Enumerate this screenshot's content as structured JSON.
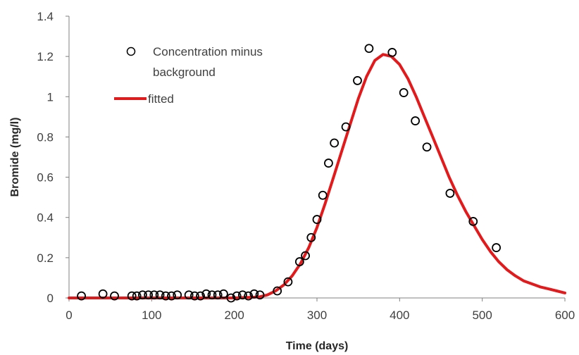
{
  "chart_data": {
    "type": "scatter",
    "xlabel": "Time (days)",
    "ylabel": "Bromide (mg/l)",
    "xlim": [
      0,
      600
    ],
    "ylim": [
      0,
      1.4
    ],
    "x_ticks": [
      "0",
      "100",
      "200",
      "300",
      "400",
      "500",
      "600"
    ],
    "y_ticks": [
      "0",
      "0.2",
      "0.4",
      "0.6",
      "0.8",
      "1",
      "1.2",
      "1.4"
    ],
    "grid": false,
    "legend_position": "top-left",
    "colors": {
      "observed": "#000000",
      "fitted": "#e31a1c",
      "axis": "#808080"
    },
    "series": [
      {
        "name_lines": [
          "Concentration minus",
          "background"
        ],
        "kind": "marker",
        "x": [
          15,
          41,
          55,
          76,
          82,
          89,
          96,
          103,
          110,
          117,
          124,
          131,
          145,
          152,
          159,
          166,
          173,
          180,
          187,
          196,
          203,
          210,
          217,
          224,
          231,
          252,
          265,
          279,
          286,
          293,
          300,
          307,
          314,
          321,
          335,
          349,
          363,
          391,
          405,
          419,
          433,
          461,
          489,
          517
        ],
        "y": [
          0.01,
          0.02,
          0.01,
          0.01,
          0.01,
          0.015,
          0.015,
          0.015,
          0.015,
          0.01,
          0.01,
          0.015,
          0.015,
          0.01,
          0.01,
          0.02,
          0.015,
          0.015,
          0.02,
          0.0,
          0.01,
          0.015,
          0.01,
          0.02,
          0.015,
          0.035,
          0.08,
          0.18,
          0.21,
          0.3,
          0.39,
          0.51,
          0.67,
          0.77,
          0.85,
          1.08,
          1.24,
          1.22,
          1.02,
          0.88,
          0.75,
          0.52,
          0.38,
          0.25
        ]
      },
      {
        "name": "fitted",
        "kind": "line",
        "x": [
          0,
          100,
          200,
          230,
          240,
          250,
          260,
          270,
          280,
          290,
          300,
          310,
          320,
          330,
          340,
          350,
          360,
          370,
          380,
          390,
          400,
          410,
          420,
          430,
          440,
          450,
          460,
          470,
          480,
          490,
          500,
          510,
          520,
          530,
          540,
          550,
          560,
          570,
          580,
          590,
          600
        ],
        "y": [
          0.0,
          0.0,
          0.0,
          0.005,
          0.015,
          0.035,
          0.065,
          0.11,
          0.17,
          0.25,
          0.35,
          0.47,
          0.6,
          0.73,
          0.86,
          0.99,
          1.1,
          1.18,
          1.21,
          1.2,
          1.16,
          1.09,
          1.0,
          0.9,
          0.8,
          0.7,
          0.6,
          0.51,
          0.43,
          0.36,
          0.29,
          0.23,
          0.18,
          0.14,
          0.11,
          0.085,
          0.07,
          0.055,
          0.045,
          0.035,
          0.025
        ]
      }
    ]
  }
}
